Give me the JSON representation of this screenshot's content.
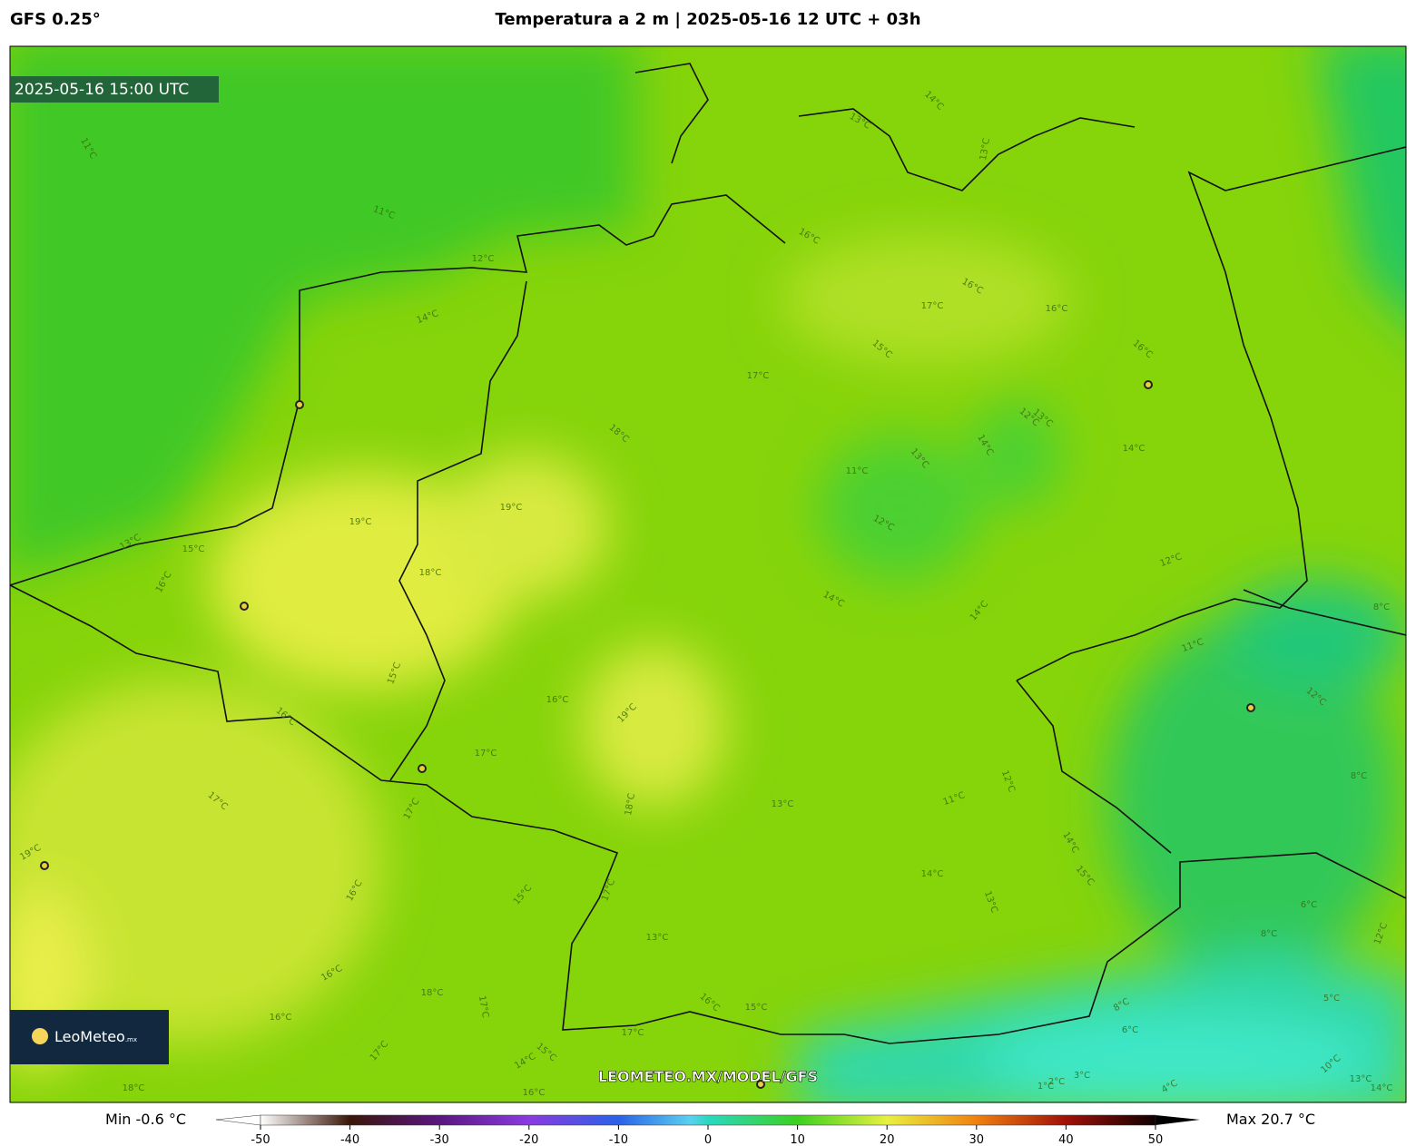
{
  "header": {
    "model": "GFS 0.25°",
    "title": "Temperatura a 2 m | 2025-05-16 12 UTC + 03h"
  },
  "map": {
    "timestamp": "2025-05-16 15:00 UTC",
    "watermark": "LEOMETEO.MX/MODEL/GFS",
    "logo": "LeoMeteo",
    "logo_suffix": ".mx",
    "contour_labels": [
      "11°C",
      "11°C",
      "12°C",
      "14°C",
      "13°C",
      "15°C",
      "16°C",
      "19°C",
      "19°C",
      "18°C",
      "18°C",
      "17°C",
      "16°C",
      "17°C",
      "16°C",
      "16°C",
      "16°C",
      "15°C",
      "13°C",
      "14°C",
      "13°C",
      "12°C",
      "13°C",
      "14°C",
      "13°C",
      "11°C",
      "12°C",
      "14°C",
      "12°C",
      "14°C",
      "14°C",
      "11°C",
      "12°C",
      "16°C",
      "19°C",
      "17°C",
      "15°C",
      "16°C",
      "17°C",
      "17°C",
      "18°C",
      "13°C",
      "11°C",
      "12°C",
      "14°C",
      "15°C",
      "14°C",
      "13°C",
      "16°C",
      "15°C",
      "17°C",
      "13°C",
      "16°C",
      "18°C",
      "17°C",
      "16°C",
      "17°C",
      "18°C",
      "16°C",
      "15°C",
      "17°C",
      "14°C",
      "15°C",
      "16°C",
      "19°C",
      "8°C",
      "8°C",
      "6°C",
      "8°C",
      "5°C",
      "10°C",
      "12°C",
      "8°C",
      "6°C",
      "3°C",
      "2°C",
      "1°C",
      "4°C",
      "13°C",
      "14°C"
    ]
  },
  "colorbar": {
    "min_label": "Min -0.6 °C",
    "max_label": "Max 20.7 °C",
    "range": [
      -50,
      50
    ],
    "ticks": [
      -50,
      -40,
      -30,
      -20,
      -10,
      0,
      10,
      20,
      30,
      40,
      50
    ]
  }
}
